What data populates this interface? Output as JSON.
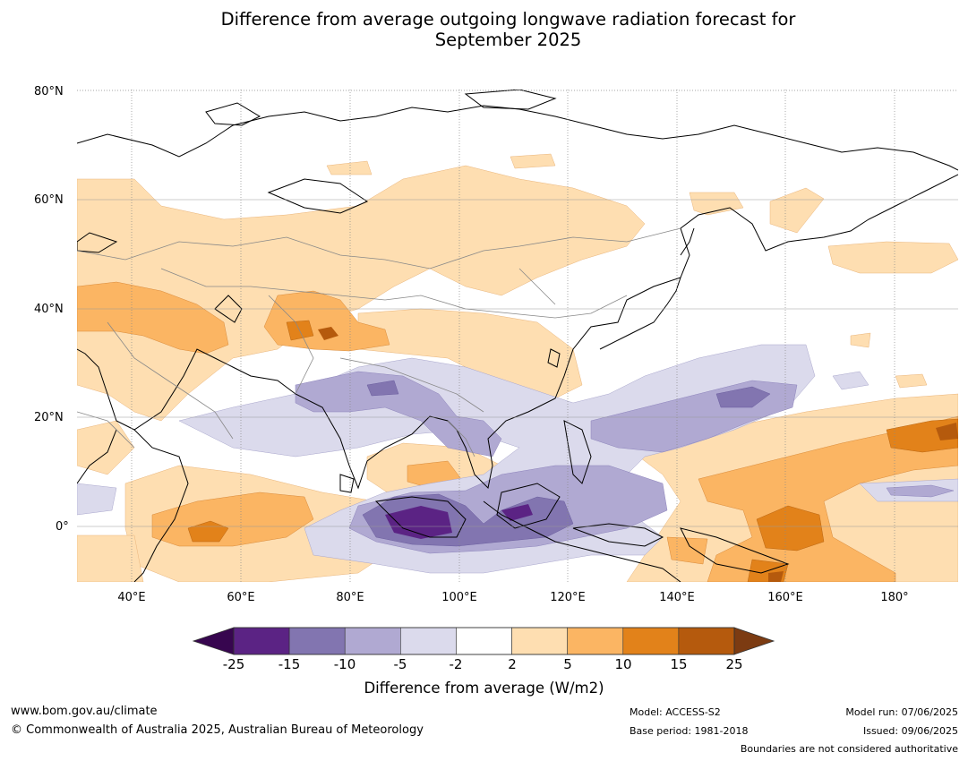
{
  "title_line1": "Difference from average outgoing longwave radiation forecast for",
  "title_line2": "September 2025",
  "lat_labels": [
    "80°N",
    "60°N",
    "40°N",
    "20°N",
    "0°"
  ],
  "lon_labels": [
    "40°E",
    "60°E",
    "80°E",
    "100°E",
    "120°E",
    "140°E",
    "160°E",
    "180°"
  ],
  "colorbar": {
    "ticks": [
      "-25",
      "-15",
      "-10",
      "-5",
      "-2",
      "2",
      "5",
      "10",
      "15",
      "25"
    ],
    "colors": [
      "#5b2384",
      "#8275b0",
      "#b0a9d2",
      "#dbdaec",
      "#ffffff",
      "#fedeb1",
      "#fbb563",
      "#e2821a",
      "#b55a0d"
    ],
    "under_color": "#37064f",
    "over_color": "#7c3b12",
    "label": "Difference from average (W/m2)"
  },
  "footer": {
    "url": "www.bom.gov.au/climate",
    "copyright": "© Commonwealth of Australia 2025, Australian Bureau of Meteorology",
    "model": "Model: ACCESS-S2",
    "base_period": "Base period: 1981-2018",
    "model_run": "Model run: 07/06/2025",
    "issued": "Issued: 09/06/2025",
    "boundaries": "Boundaries are not considered authoritative"
  }
}
